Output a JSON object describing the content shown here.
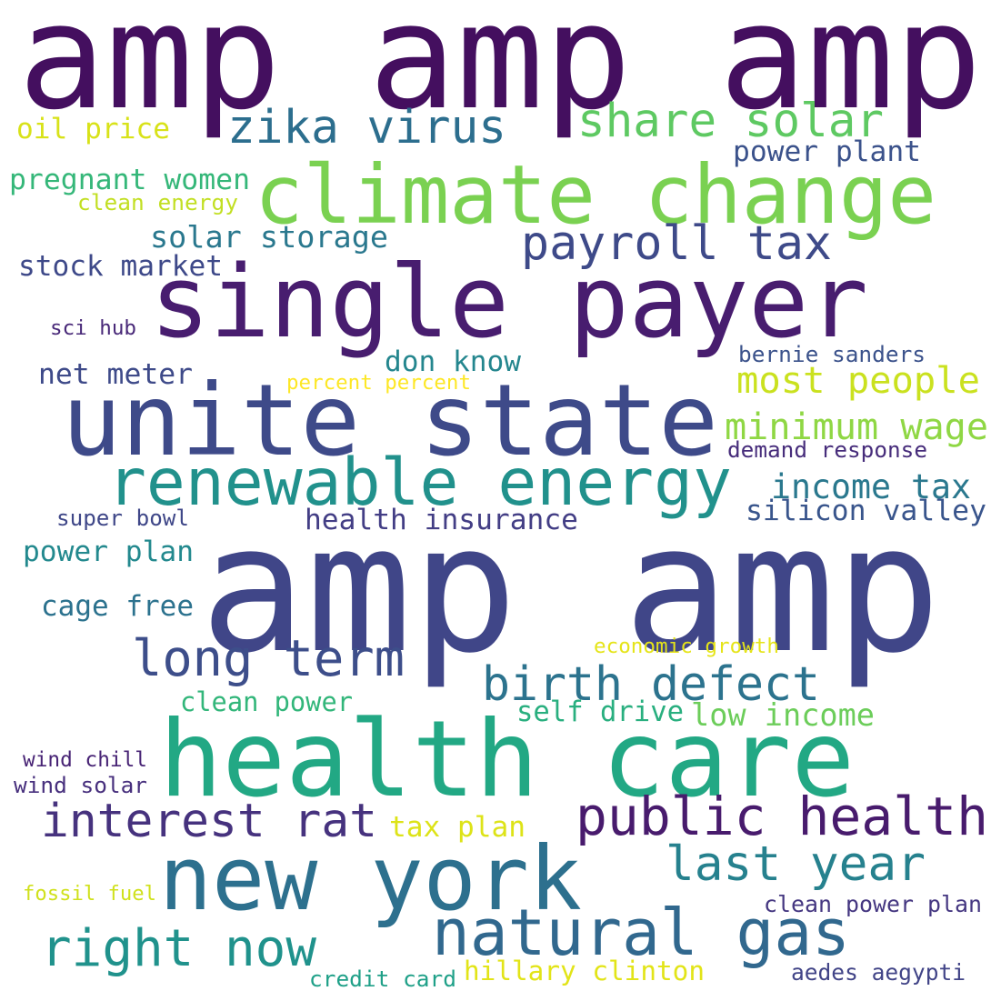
{
  "words": [
    "amp amp amp",
    "oil price",
    "zika virus",
    "share solar",
    "power plant",
    "climate change",
    "pregnant women",
    "clean energy",
    "payroll tax",
    "solar storage",
    "stock market",
    "single payer",
    "sci hub",
    "bernie sanders",
    "net meter",
    "don know",
    "percent percent",
    "most people",
    "unite state",
    "minimum wage",
    "demand response",
    "renewable energy",
    "income tax",
    "silicon valley",
    "super bowl",
    "health insurance",
    "power plan",
    "amp amp",
    "cage free",
    "long term",
    "economic growth",
    "birth defect",
    "clean power",
    "self drive",
    "low income",
    "health care",
    "wind chill",
    "wind solar",
    "interest rat",
    "public health",
    "tax plan",
    "new york",
    "last year",
    "fossil fuel",
    "clean power plan",
    "natural gas",
    "right now",
    "credit card",
    "hillary clinton",
    "aedes aegypti"
  ]
}
